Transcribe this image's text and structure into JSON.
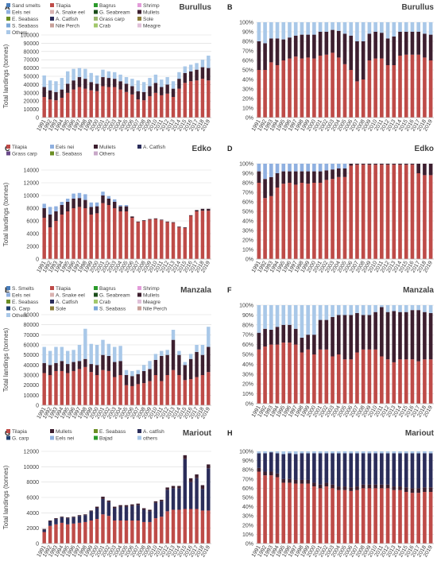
{
  "years": [
    "1991",
    "1992",
    "1993",
    "1994",
    "1995",
    "1996",
    "1997",
    "1998",
    "1999",
    "2000",
    "2001",
    "2002",
    "2003",
    "2004",
    "2005",
    "2006",
    "2007",
    "2008",
    "2009",
    "2010",
    "2011",
    "2012",
    "2013",
    "2014",
    "2015",
    "2016",
    "2017",
    "2018",
    "2019"
  ],
  "chart_data": [
    {
      "id": "A",
      "letter": "A",
      "title": "Burullus",
      "type": "bar",
      "stacked": true,
      "ylabel": "Total landings (tonnes)",
      "ylim": [
        0,
        100000
      ],
      "ystep": 10000,
      "percent": false,
      "legend": [
        "Sand smelts",
        "Tilapia",
        "Bagrus",
        "Shrimp",
        "Eels nei",
        "A. Snake eel",
        "G. Seabream",
        "Mullets",
        "E. Seabass",
        "A. Catfish",
        "Grass carp",
        "Sole",
        "S. Seabass",
        "Nile Perch",
        "Crab",
        "Meagre",
        "Others"
      ],
      "legend_colors": [
        "#4a7ebb",
        "#be4b48",
        "#2a9a2a",
        "#e39bd9",
        "#8fb0e0",
        "#d9b2b0",
        "#1a4d1a",
        "#3d1f2f",
        "#6b8e23",
        "#2b2d5a",
        "#9ab86e",
        "#8b7d3a",
        "#7ba7d8",
        "#c7a099",
        "#a2c86b",
        "#e0c0d8",
        "#a9c8e8"
      ],
      "series": [
        {
          "name": "Tilapia",
          "color": "#be4b48",
          "values": [
            25000,
            22000,
            21000,
            24000,
            30000,
            34000,
            37000,
            35000,
            33000,
            32000,
            38000,
            37000,
            37000,
            34000,
            31000,
            28000,
            22000,
            21000,
            26000,
            30000,
            27000,
            29000,
            25000,
            35000,
            42000,
            44000,
            45000,
            47000,
            45000
          ]
        },
        {
          "name": "Mullets",
          "color": "#3d1f2f",
          "values": [
            12000,
            11000,
            10000,
            10000,
            11000,
            11000,
            12000,
            12000,
            10000,
            9000,
            11000,
            11000,
            10000,
            10000,
            10000,
            10000,
            10000,
            10000,
            12000,
            12000,
            10000,
            11000,
            10000,
            12000,
            12000,
            12000,
            13000,
            14000,
            15000
          ]
        },
        {
          "name": "Others",
          "color": "#a9c8e8",
          "values": [
            14000,
            12000,
            13000,
            14000,
            15000,
            14000,
            11000,
            12000,
            11000,
            10000,
            9000,
            8000,
            8000,
            8000,
            8000,
            9000,
            13000,
            12000,
            10000,
            10000,
            9000,
            9000,
            9000,
            8000,
            8000,
            8000,
            8000,
            9000,
            15000
          ]
        }
      ]
    },
    {
      "id": "B",
      "letter": "B",
      "title": "Burullus",
      "type": "bar",
      "stacked": true,
      "ylim": [
        0,
        100
      ],
      "ystep": 10,
      "percent": true,
      "series": [
        {
          "name": "Tilapia",
          "color": "#be4b48",
          "values": [
            50,
            50,
            58,
            55,
            60,
            62,
            64,
            62,
            63,
            62,
            65,
            66,
            68,
            63,
            56,
            50,
            38,
            40,
            60,
            62,
            62,
            55,
            55,
            65,
            66,
            66,
            66,
            63,
            60
          ]
        },
        {
          "name": "Mullets",
          "color": "#3d1f2f",
          "values": [
            30,
            28,
            25,
            28,
            22,
            22,
            22,
            25,
            24,
            25,
            25,
            24,
            24,
            28,
            32,
            36,
            42,
            40,
            28,
            28,
            27,
            28,
            30,
            25,
            24,
            24,
            24,
            25,
            27
          ]
        },
        {
          "name": "Others",
          "color": "#a9c8e8",
          "values": [
            20,
            22,
            17,
            17,
            18,
            16,
            14,
            13,
            13,
            13,
            10,
            10,
            8,
            9,
            12,
            14,
            20,
            20,
            12,
            10,
            11,
            17,
            15,
            10,
            10,
            10,
            10,
            12,
            13
          ]
        }
      ]
    },
    {
      "id": "C",
      "letter": "C",
      "title": "Edko",
      "type": "bar",
      "stacked": true,
      "ylabel": "Total landings (tonnes)",
      "ylim": [
        0,
        14000
      ],
      "ystep": 2000,
      "percent": false,
      "legend": [
        "Tilapia",
        "Eels nei",
        "Mullets",
        "A. Catfish",
        "Grass carp",
        "E. Seabass",
        "Others"
      ],
      "legend_colors": [
        "#be4b48",
        "#8fb0e0",
        "#3d1f2f",
        "#2b2d5a",
        "#6a4a8a",
        "#6b8e23",
        "#c8a8c8"
      ],
      "series": [
        {
          "name": "Tilapia",
          "color": "#be4b48",
          "values": [
            6500,
            5000,
            6000,
            7000,
            7500,
            8000,
            8200,
            8000,
            7000,
            7200,
            8800,
            8500,
            8000,
            7500,
            7500,
            6500,
            5800,
            6000,
            6200,
            6300,
            6100,
            5800,
            5700,
            5000,
            4900,
            6800,
            7500,
            7600,
            7600
          ]
        },
        {
          "name": "Mullets",
          "color": "#3d1f2f",
          "values": [
            1500,
            2000,
            1500,
            1500,
            1500,
            1500,
            1400,
            1300,
            1200,
            1100,
            1200,
            1000,
            1000,
            800,
            800,
            200,
            100,
            100,
            100,
            100,
            100,
            100,
            100,
            100,
            100,
            100,
            200,
            300,
            300
          ]
        },
        {
          "name": "Eels nei",
          "color": "#8fb0e0",
          "values": [
            700,
            1200,
            800,
            500,
            500,
            800,
            800,
            900,
            700,
            600,
            600,
            400,
            400,
            200,
            200,
            0,
            0,
            0,
            0,
            0,
            0,
            0,
            0,
            0,
            0,
            0,
            0,
            0,
            0
          ]
        }
      ]
    },
    {
      "id": "D",
      "letter": "D",
      "title": "Edko",
      "type": "bar",
      "stacked": true,
      "ylim": [
        0,
        100
      ],
      "ystep": 10,
      "percent": true,
      "series": [
        {
          "name": "Tilapia",
          "color": "#be4b48",
          "values": [
            80,
            64,
            66,
            75,
            79,
            80,
            78,
            80,
            79,
            80,
            80,
            83,
            84,
            86,
            86,
            98,
            99,
            99,
            99,
            99,
            99,
            99,
            99,
            99,
            99,
            99,
            90,
            88,
            88
          ]
        },
        {
          "name": "Mullets",
          "color": "#3d1f2f",
          "values": [
            12,
            20,
            20,
            15,
            13,
            12,
            14,
            12,
            13,
            12,
            12,
            10,
            10,
            9,
            9,
            2,
            1,
            1,
            1,
            1,
            1,
            1,
            1,
            1,
            1,
            1,
            10,
            12,
            12
          ]
        },
        {
          "name": "Eels nei",
          "color": "#8fb0e0",
          "values": [
            8,
            16,
            14,
            10,
            8,
            8,
            8,
            8,
            8,
            8,
            8,
            7,
            6,
            5,
            5,
            0,
            0,
            0,
            0,
            0,
            0,
            0,
            0,
            0,
            0,
            0,
            0,
            0,
            0
          ]
        }
      ]
    },
    {
      "id": "E",
      "letter": "E",
      "title": "Manzala",
      "type": "bar",
      "stacked": true,
      "ylabel": "Total landings (tonnes)",
      "ylim": [
        0,
        90000
      ],
      "ystep": 10000,
      "percent": false,
      "legend": [
        "S. Smelts",
        "Tilapia",
        "Bagrus",
        "Shrimp",
        "Eels nei",
        "A. Snake eel",
        "G. Seabream",
        "Mullets",
        "E. Seabass",
        "A. Catfish",
        "Crab",
        "Meagre",
        "G. Carp",
        "Sole",
        "S. Seabass",
        "Nile Perch",
        "Others"
      ],
      "legend_colors": [
        "#4a7ebb",
        "#be4b48",
        "#2a9a2a",
        "#e39bd9",
        "#8fb0e0",
        "#d9b2b0",
        "#1a4d1a",
        "#3d1f2f",
        "#6b8e23",
        "#2b2d5a",
        "#a2c86b",
        "#e0c0d8",
        "#1f3f6f",
        "#8b7d3a",
        "#7ba7d8",
        "#c7a099",
        "#a9c8e8"
      ],
      "series": [
        {
          "name": "Tilapia",
          "color": "#be4b48",
          "values": [
            32000,
            30000,
            34000,
            34000,
            32000,
            34000,
            36000,
            38000,
            33000,
            30000,
            35000,
            34000,
            28000,
            30000,
            20000,
            19000,
            21000,
            22000,
            24000,
            30000,
            24000,
            30000,
            35000,
            30000,
            25000,
            26000,
            28000,
            30000,
            33000
          ]
        },
        {
          "name": "Mullets",
          "color": "#3d1f2f",
          "values": [
            10000,
            10000,
            8000,
            10000,
            9000,
            9000,
            8000,
            8000,
            8000,
            10000,
            15000,
            15000,
            15000,
            14000,
            10000,
            10000,
            10000,
            12000,
            12000,
            15000,
            25000,
            20000,
            30000,
            20000,
            15000,
            20000,
            25000,
            20000,
            25000
          ]
        },
        {
          "name": "Others",
          "color": "#a9c8e8",
          "values": [
            16000,
            14000,
            16000,
            14000,
            13000,
            12000,
            16000,
            30000,
            20000,
            20000,
            15000,
            12000,
            15000,
            15000,
            5000,
            5000,
            4000,
            6000,
            8000,
            6000,
            5000,
            5000,
            10000,
            4000,
            3000,
            5000,
            7000,
            10000,
            20000
          ]
        }
      ]
    },
    {
      "id": "F",
      "letter": "F",
      "title": "Manzala",
      "type": "bar",
      "stacked": true,
      "ylim": [
        0,
        100
      ],
      "ystep": 10,
      "percent": true,
      "series": [
        {
          "name": "Tilapia",
          "color": "#be4b48",
          "values": [
            55,
            58,
            60,
            60,
            62,
            62,
            60,
            52,
            55,
            50,
            55,
            55,
            48,
            50,
            45,
            45,
            52,
            55,
            55,
            55,
            48,
            45,
            42,
            45,
            45,
            45,
            43,
            45,
            45
          ]
        },
        {
          "name": "Mullets",
          "color": "#3d1f2f",
          "values": [
            17,
            18,
            15,
            18,
            18,
            18,
            16,
            15,
            15,
            20,
            30,
            30,
            40,
            40,
            45,
            45,
            40,
            35,
            35,
            38,
            50,
            48,
            52,
            48,
            48,
            50,
            52,
            48,
            47
          ]
        },
        {
          "name": "Others",
          "color": "#a9c8e8",
          "values": [
            28,
            24,
            25,
            22,
            20,
            20,
            24,
            33,
            30,
            30,
            15,
            15,
            12,
            10,
            10,
            10,
            8,
            10,
            10,
            7,
            2,
            7,
            6,
            7,
            7,
            5,
            5,
            7,
            8
          ]
        }
      ]
    },
    {
      "id": "G",
      "letter": "G",
      "title": "Mariout",
      "type": "bar",
      "stacked": true,
      "ylabel": "Total landings (tonnes)",
      "ylim": [
        0,
        12000
      ],
      "ystep": 2000,
      "percent": false,
      "legend": [
        "Tilapia",
        "Mullets",
        "E. Seabass",
        "A. catfish",
        "G. carp",
        "Eels nei",
        "Bajad",
        "others"
      ],
      "legend_colors": [
        "#be4b48",
        "#3d1f2f",
        "#6b8e23",
        "#2b2d5a",
        "#1f3f6f",
        "#8fb0e0",
        "#2a9a2a",
        "#a9c8e8"
      ],
      "series": [
        {
          "name": "Tilapia",
          "color": "#be4b48",
          "values": [
            1500,
            2300,
            2500,
            2700,
            2500,
            2600,
            2700,
            2800,
            3000,
            3200,
            3800,
            3600,
            3000,
            3000,
            3000,
            3000,
            3000,
            2800,
            2800,
            3300,
            3500,
            4200,
            4400,
            4400,
            4500,
            4500,
            4500,
            4300,
            4300
          ]
        },
        {
          "name": "A. catfish",
          "color": "#2b2d5a",
          "values": [
            300,
            600,
            700,
            700,
            800,
            800,
            900,
            900,
            1200,
            1400,
            2000,
            1800,
            1600,
            1800,
            1800,
            1900,
            2000,
            1600,
            1400,
            2000,
            2000,
            2800,
            2800,
            2800,
            6500,
            3500,
            4000,
            2800,
            5500
          ]
        },
        {
          "name": "Mullets",
          "color": "#3d1f2f",
          "values": [
            100,
            100,
            100,
            100,
            100,
            100,
            100,
            100,
            100,
            200,
            300,
            200,
            200,
            200,
            200,
            200,
            200,
            200,
            200,
            200,
            200,
            300,
            300,
            300,
            500,
            500,
            500,
            500,
            500
          ]
        }
      ]
    },
    {
      "id": "H",
      "letter": "H",
      "title": "Mariout",
      "type": "bar",
      "stacked": true,
      "ylim": [
        0,
        100
      ],
      "ystep": 10,
      "percent": true,
      "series": [
        {
          "name": "Tilapia",
          "color": "#be4b48",
          "values": [
            78,
            74,
            74,
            72,
            66,
            66,
            65,
            65,
            65,
            62,
            60,
            62,
            60,
            58,
            58,
            57,
            58,
            60,
            60,
            60,
            60,
            60,
            58,
            58,
            56,
            55,
            55,
            56,
            56
          ]
        },
        {
          "name": "Mullets",
          "color": "#3d1f2f",
          "values": [
            4,
            4,
            4,
            4,
            4,
            4,
            4,
            4,
            4,
            4,
            4,
            4,
            4,
            4,
            4,
            4,
            4,
            4,
            4,
            4,
            4,
            4,
            4,
            4,
            5,
            5,
            5,
            5,
            5
          ]
        },
        {
          "name": "A. catfish",
          "color": "#2b2d5a",
          "values": [
            16,
            20,
            21,
            22,
            27,
            28,
            28,
            29,
            29,
            32,
            34,
            32,
            34,
            36,
            36,
            37,
            36,
            34,
            34,
            34,
            34,
            34,
            36,
            36,
            37,
            38,
            38,
            37,
            37
          ]
        },
        {
          "name": "others",
          "color": "#a9c8e8",
          "values": [
            2,
            2,
            1,
            2,
            3,
            2,
            3,
            2,
            2,
            2,
            2,
            2,
            2,
            2,
            2,
            2,
            2,
            2,
            2,
            2,
            2,
            2,
            2,
            2,
            2,
            2,
            2,
            2,
            2
          ]
        }
      ]
    }
  ]
}
